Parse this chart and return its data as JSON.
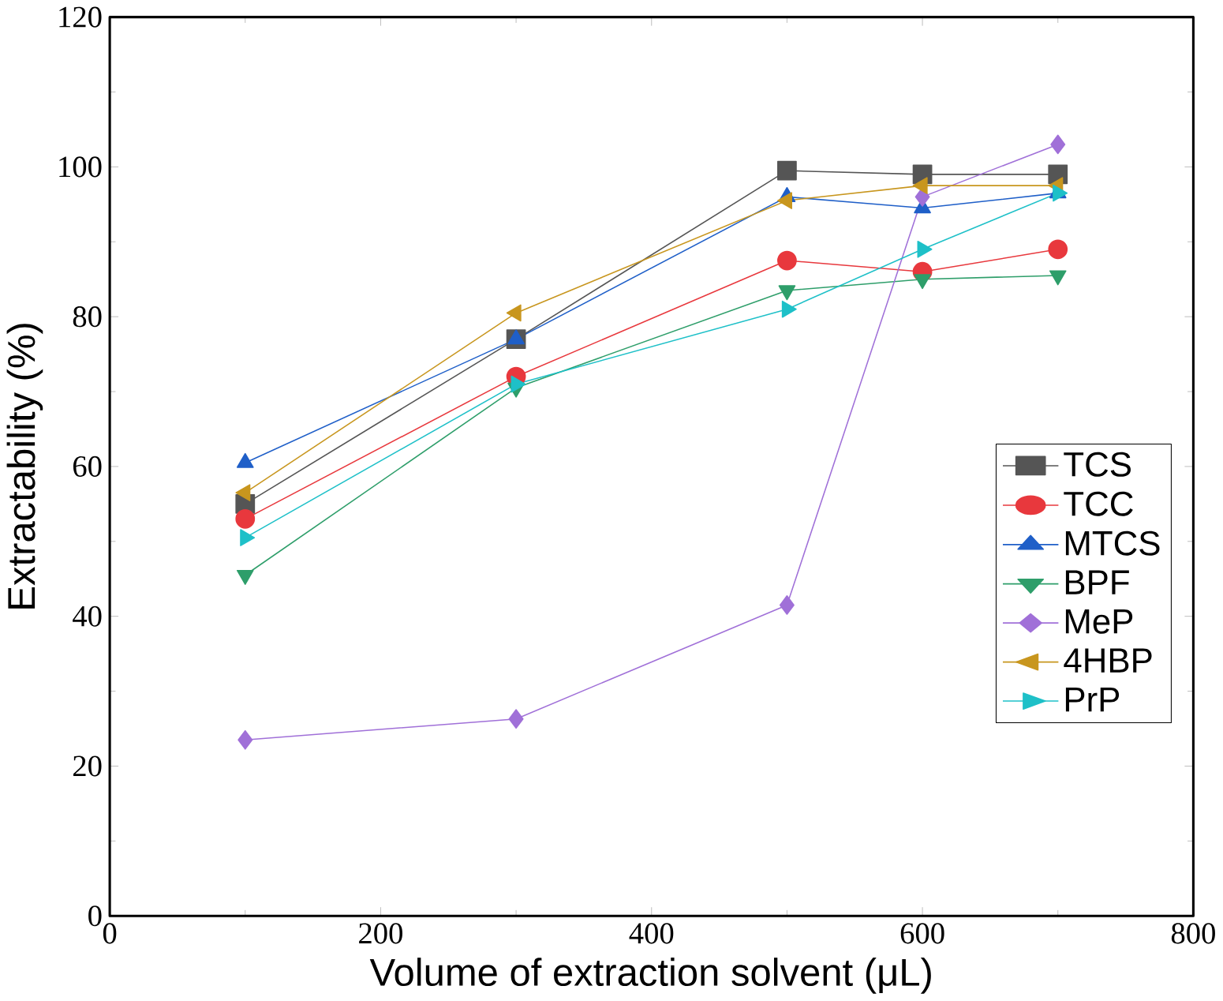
{
  "chart_data": {
    "type": "line",
    "xlabel": "Volume of extraction solvent (μL)",
    "ylabel": "Extractability (%)",
    "x": [
      100,
      300,
      500,
      600,
      700
    ],
    "series": [
      {
        "name": "TCS",
        "color": "#555555",
        "marker": "square",
        "values": [
          55,
          77,
          99.5,
          99,
          99
        ]
      },
      {
        "name": "TCC",
        "color": "#e8383d",
        "marker": "circle",
        "values": [
          53,
          72,
          87.5,
          86,
          89
        ]
      },
      {
        "name": "MTCS",
        "color": "#1f5fc8",
        "marker": "triangle",
        "values": [
          60.5,
          77,
          96,
          94.5,
          96.5
        ]
      },
      {
        "name": "BPF",
        "color": "#2e9e6a",
        "marker": "triangle down",
        "values": [
          45.5,
          70.5,
          83.5,
          85,
          85.5
        ]
      },
      {
        "name": "MeP",
        "color": "#a070d8",
        "marker": "diamond",
        "values": [
          23.5,
          26.3,
          41.5,
          96,
          103
        ]
      },
      {
        "name": "4HBP",
        "color": "#c8961e",
        "marker": "triangle left",
        "values": [
          56.5,
          80.5,
          95.5,
          97.5,
          97.5
        ]
      },
      {
        "name": "PrP",
        "color": "#1ec0c8",
        "marker": "triangle right",
        "values": [
          50.5,
          71,
          81,
          89,
          96.5
        ]
      }
    ],
    "xlim": [
      0,
      800
    ],
    "xticks": [
      0,
      200,
      400,
      600,
      800
    ],
    "ylim": [
      0,
      120
    ],
    "yticks": [
      0,
      20,
      40,
      60,
      80,
      100,
      120
    ],
    "grid": false,
    "legend": "right",
    "line_style": "solid"
  }
}
